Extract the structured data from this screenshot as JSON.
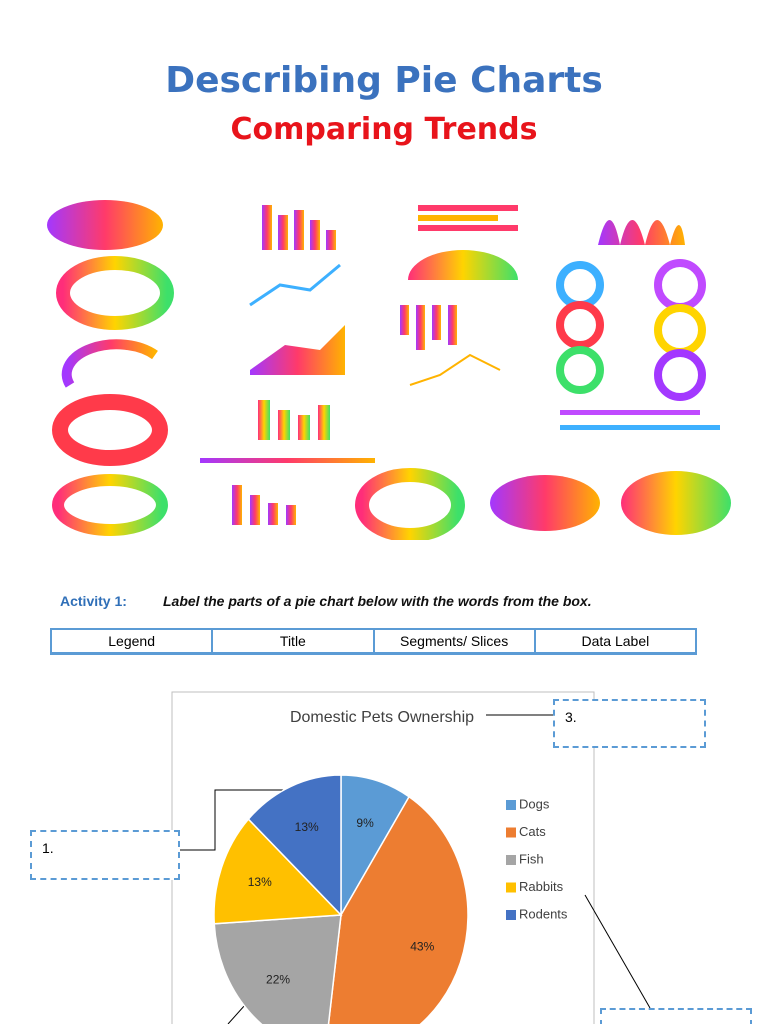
{
  "header": {
    "title": "Describing Pie Charts",
    "subtitle": "Comparing Trends"
  },
  "activity": {
    "label": "Activity 1:",
    "instruction": "Label the parts of a pie chart below with the words from the box."
  },
  "word_box": [
    "Legend",
    "Title",
    "Segments/ Slices",
    "Data Label"
  ],
  "callouts": [
    "1.",
    "3."
  ],
  "chart_data": {
    "type": "pie",
    "title": "Domestic Pets Ownership",
    "categories": [
      "Dogs",
      "Cats",
      "Fish",
      "Rabbits",
      "Rodents"
    ],
    "values": [
      9,
      43,
      22,
      13,
      13
    ],
    "value_labels": [
      "9%",
      "43%",
      "22%",
      "13%",
      "13%"
    ],
    "colors": [
      "#5b9bd5",
      "#ed7d31",
      "#a5a5a5",
      "#ffc000",
      "#4472c4"
    ],
    "legend": "right"
  }
}
